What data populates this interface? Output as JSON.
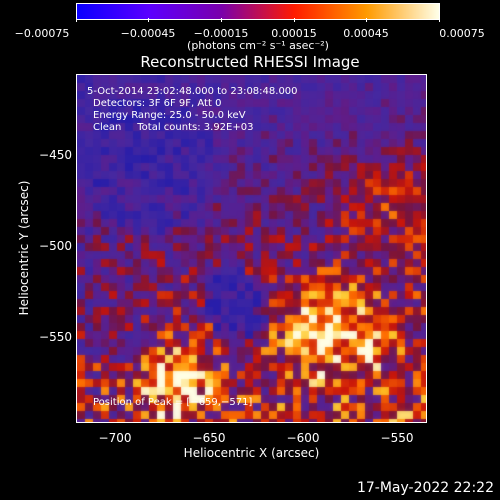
{
  "colorbar": {
    "ticks": [
      "−0.00075",
      "−0.00045",
      "−0.00015",
      "0.00015",
      "0.00045",
      "0.00075"
    ],
    "units": "(photons cm⁻² s⁻¹ asec⁻²)",
    "colors": [
      "#0a00ff",
      "#5b00ff",
      "#7a00aa",
      "#ff1b00",
      "#ff9a00",
      "#ffffe8"
    ]
  },
  "plot": {
    "title": "Reconstructed RHESSI Image",
    "info_lines": [
      "5-Oct-2014 23:02:48.000 to 23:08:48.000",
      "Detectors: 3F 6F 9F, Att 0",
      "Energy Range: 25.0 - 50.0 keV",
      "Clean     Total counts: 3.92E+03"
    ],
    "peak_label": "Position of Peak = [−659,−571]",
    "x_axis": {
      "title": "Heliocentric X (arcsec)",
      "ticks": [
        "−700",
        "−650",
        "−600",
        "−550"
      ]
    },
    "y_axis": {
      "title": "Heliocentric Y (arcsec)",
      "ticks": [
        "−450",
        "−500",
        "−550"
      ]
    }
  },
  "footer": {
    "date": "17-May-2022 22:22"
  }
}
